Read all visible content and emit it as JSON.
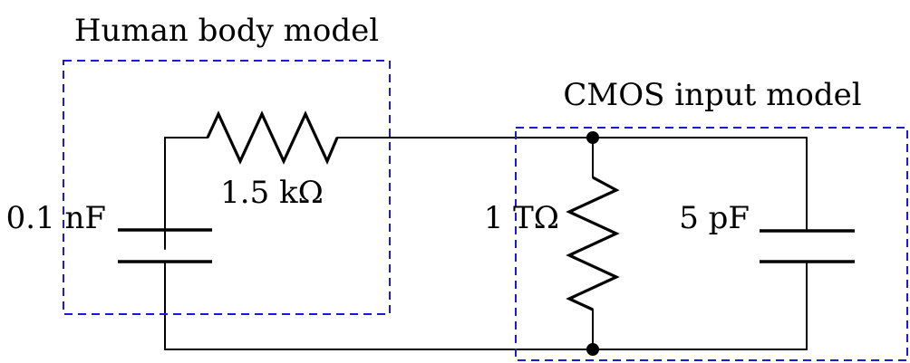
{
  "groups": {
    "human_body_model": {
      "title": "Human body model"
    },
    "cmos_input_model": {
      "title": "CMOS input model"
    }
  },
  "components": {
    "human_capacitor": {
      "label": "0.1 nF"
    },
    "human_resistor": {
      "label": "1.5 kΩ"
    },
    "cmos_resistor": {
      "label": "1 TΩ"
    },
    "cmos_capacitor": {
      "label": "5 pF"
    }
  },
  "colors": {
    "wire": "#000000",
    "group_box": "#1a1adb"
  }
}
